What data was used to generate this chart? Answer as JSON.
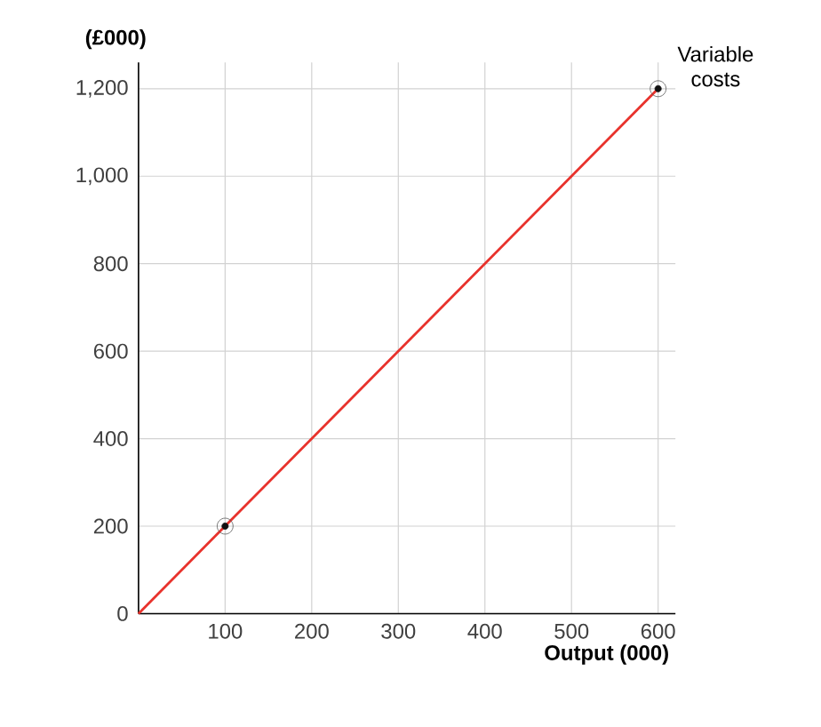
{
  "chart_data": {
    "type": "line",
    "ylabel": "(£000)",
    "xlabel": "Output (000)",
    "xlim": [
      0,
      620
    ],
    "ylim": [
      0,
      1260
    ],
    "xticks": [
      {
        "value": 0,
        "label": null
      },
      100,
      200,
      300,
      400,
      500,
      600
    ],
    "yticks": [
      0,
      200,
      400,
      600,
      800,
      {
        "value": 1000,
        "label": "1,000"
      },
      {
        "value": 1200,
        "label": "1,200"
      }
    ],
    "grid": true,
    "series": [
      {
        "name": "Variable costs",
        "color": "#e8322c",
        "x": [
          0,
          600
        ],
        "values": [
          0,
          1200
        ]
      },
      {
        "type": "scatter",
        "color": "#111111",
        "x": [
          100,
          600
        ],
        "values": [
          200,
          1200
        ],
        "marker": "circle"
      }
    ]
  }
}
